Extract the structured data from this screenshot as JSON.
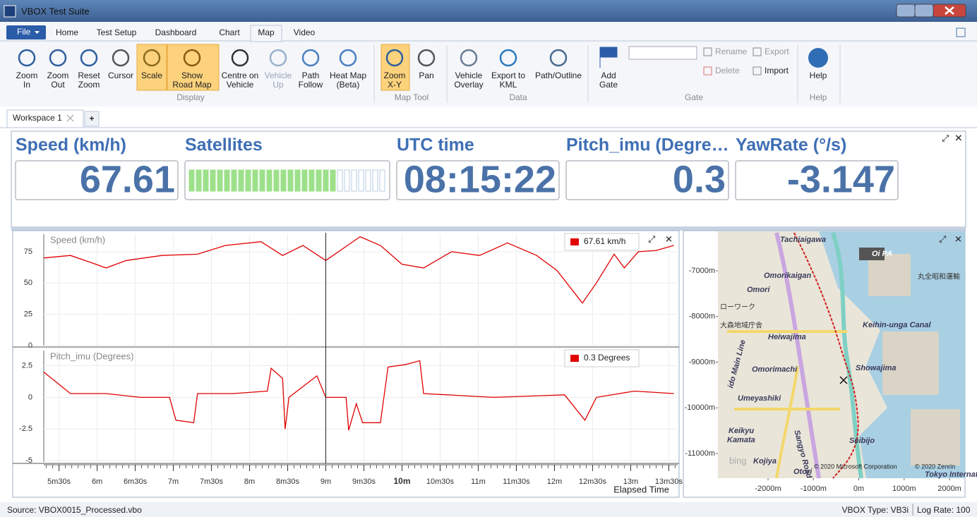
{
  "window": {
    "title": "VBOX Test Suite"
  },
  "menu": {
    "file": "File",
    "tabs": [
      "Home",
      "Test Setup",
      "Dashboard",
      "Chart",
      "Map",
      "Video"
    ]
  },
  "ribbon": {
    "groups": [
      {
        "name": "Display",
        "buttons": [
          [
            "Zoom",
            "In"
          ],
          [
            "Zoom",
            "Out"
          ],
          [
            "Reset",
            "Zoom"
          ],
          [
            "Cursor"
          ],
          [
            "Scale"
          ],
          [
            "Show",
            "Road Map"
          ],
          [
            "Centre on",
            "Vehicle"
          ],
          [
            "Vehicle",
            "Up"
          ],
          [
            "Path",
            "Follow"
          ],
          [
            "Heat Map",
            "(Beta)"
          ]
        ]
      },
      {
        "name": "Map Tool",
        "buttons": [
          [
            "Zoom",
            "X-Y"
          ],
          [
            "Pan"
          ]
        ]
      },
      {
        "name": "Data",
        "buttons": [
          [
            "Vehicle",
            "Overlay"
          ],
          [
            "Export to",
            "KML"
          ],
          [
            "Path/Outline"
          ]
        ]
      },
      {
        "name": "Gate",
        "buttons": [
          [
            "Add",
            "Gate"
          ]
        ],
        "actions": [
          "Rename",
          "Delete",
          "Export",
          "Import"
        ]
      },
      {
        "name": "Help",
        "buttons": [
          [
            "Help"
          ]
        ]
      }
    ]
  },
  "workspace": {
    "tab": "Workspace 1",
    "add": "+"
  },
  "gauges": [
    {
      "label": "Speed (km/h)",
      "value": "67.61"
    },
    {
      "label": "Satellites",
      "lit": 21,
      "total": 28
    },
    {
      "label": "UTC time",
      "value": "08:15:22"
    },
    {
      "label": "Pitch_imu (Degre…",
      "value": "0.3"
    },
    {
      "label": "YawRate (°/s)",
      "value": "-3.147"
    }
  ],
  "charts": {
    "cursor": 540,
    "xlim": [
      318,
      817
    ],
    "xlabel": "Elapsed Time",
    "xticks": [
      {
        "value": 330,
        "label": "5m30s"
      },
      {
        "value": 360,
        "label": "6m"
      },
      {
        "value": 390,
        "label": "6m30s"
      },
      {
        "value": 420,
        "label": "7m"
      },
      {
        "value": 450,
        "label": "7m30s"
      },
      {
        "value": 480,
        "label": "8m"
      },
      {
        "value": 510,
        "label": "8m30s"
      },
      {
        "value": 540,
        "label": "9m"
      },
      {
        "value": 570,
        "label": "9m30s"
      },
      {
        "value": 600,
        "label": "10m"
      },
      {
        "value": 630,
        "label": "10m30s"
      },
      {
        "value": 660,
        "label": "11m"
      },
      {
        "value": 690,
        "label": "11m30s"
      },
      {
        "value": 720,
        "label": "12m"
      },
      {
        "value": 750,
        "label": "12m30s"
      },
      {
        "value": 780,
        "label": "13m"
      },
      {
        "value": 810,
        "label": "13m30s"
      }
    ],
    "panels": [
      {
        "title": "Speed (km/h)",
        "legend": "67.61 km/h",
        "color": "#e00000",
        "ylim": [
          0,
          89
        ],
        "yticks": [
          0,
          25,
          50,
          75
        ],
        "x": [
          318,
          339,
          356,
          367,
          383,
          411,
          439,
          461,
          489,
          506,
          522,
          540,
          567,
          583,
          600,
          617,
          639,
          661,
          683,
          706,
          722,
          742,
          753,
          767,
          775,
          786,
          800,
          814
        ],
        "values": [
          70,
          72,
          66,
          62,
          68,
          72,
          73,
          80,
          83,
          72,
          80,
          68,
          87,
          80,
          65,
          62,
          75,
          72,
          82,
          72,
          60,
          34,
          50,
          73,
          62,
          75,
          76,
          80
        ]
      },
      {
        "title": "Pitch_imu (Degrees)",
        "legend": "0.3 Degrees",
        "color": "#e00000",
        "ylim": [
          -5.1,
          3.7
        ],
        "yticks": [
          -5,
          -2.5,
          0,
          2.5
        ],
        "x": [
          318,
          339,
          367,
          394,
          417,
          422,
          436,
          439,
          467,
          494,
          497,
          506,
          508,
          511,
          533,
          540,
          556,
          558,
          564,
          569,
          583,
          589,
          603,
          614,
          617,
          672,
          728,
          744,
          753,
          783,
          814
        ],
        "values": [
          2,
          0.3,
          0.3,
          0,
          0,
          -1.8,
          -2,
          0.3,
          0.3,
          0.5,
          2.3,
          1.5,
          -2.5,
          0,
          1.7,
          0,
          0,
          -2.6,
          -0.5,
          -2,
          -2,
          2.4,
          2.6,
          2.9,
          0.3,
          0,
          0.2,
          -1.8,
          0,
          0.5,
          0.3
        ]
      }
    ]
  },
  "map": {
    "xlim": [
      -3105,
      2342
    ],
    "ylim": [
      -11541,
      -6135
    ],
    "xticks": [
      {
        "value": -2000,
        "label": "-2000m"
      },
      {
        "value": -1000,
        "label": "-1000m"
      },
      {
        "value": 0,
        "label": "0m"
      },
      {
        "value": 1000,
        "label": "1000m"
      },
      {
        "value": 2000,
        "label": "2000m"
      }
    ],
    "yticks": [
      {
        "value": -7000,
        "label": "-7000m"
      },
      {
        "value": -8000,
        "label": "-8000m"
      },
      {
        "value": -9000,
        "label": "-9000m"
      },
      {
        "value": -10000,
        "label": "-10000m"
      },
      {
        "value": -11000,
        "label": "-11000m"
      }
    ],
    "places": [
      "Tachiaigawa",
      "Oi PA",
      "丸全昭和運輸",
      "Omorikaigan",
      "Omori",
      "ローワーク",
      "大森地域庁舎",
      "Heiwajima",
      "Keihin-unga Canal",
      "Omorimachi",
      "Showajima",
      "Umeyashiki",
      "Keikyu",
      "Kamata",
      "Seibijo",
      "Kojiya",
      "Otori",
      "Sangyo Road",
      "ido Main Line",
      "Tokyo Internati"
    ],
    "credits": [
      "© 2020 Microsoft Corporation",
      "© 2020 Zenrin",
      "bing"
    ]
  },
  "status": {
    "source": "Source: VBOX0015_Processed.vbo",
    "type": "VBOX Type: VB3i",
    "rate": "Log Rate: 100"
  }
}
